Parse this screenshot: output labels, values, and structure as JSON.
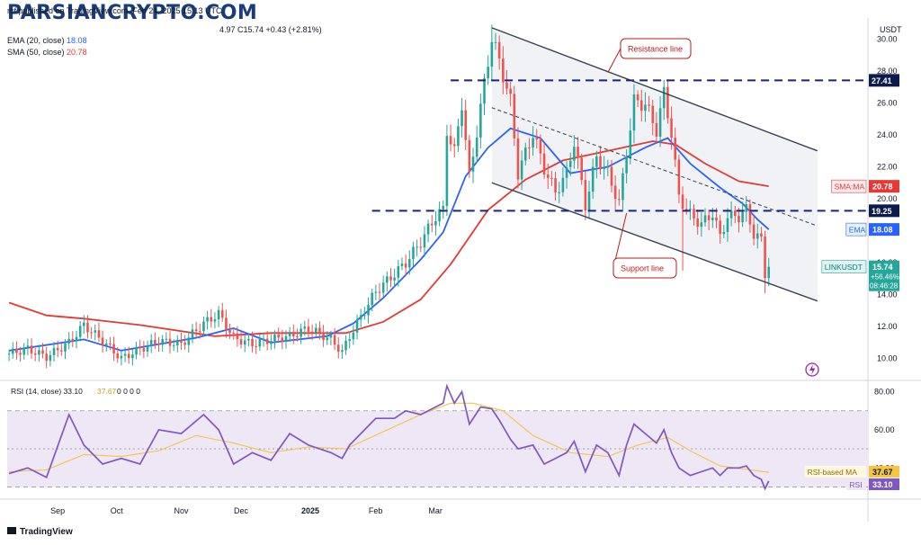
{
  "header": {
    "publisher_line": "rcf published on TradingView.com, Feb 24, 2025 15:13 UTC",
    "ohlc_fragment": "4.97  C15.74  +0.43 (+2.81%)",
    "ema_label": "EMA (20, close)",
    "ema_value": "18.08",
    "sma_label": "SMA (50, close)",
    "sma_value": "20.78"
  },
  "watermark": "PARSIANCRYPTO.COM",
  "footer": {
    "brand": "TradingView"
  },
  "colors": {
    "up": "#26a69a",
    "down": "#ef5350",
    "ema": "#2962ff",
    "sma": "#e53935",
    "channel": "#374151",
    "level": "#1a237e",
    "rsi": "#7e57c2",
    "rsi_ma": "#f6c445",
    "rsi_band": "#ede7f6"
  },
  "chart_data": [
    {
      "type": "candlestick",
      "symbol": "LINKUSDT",
      "quote": "USDT",
      "x_labels": [
        "Sep",
        "Oct",
        "Nov",
        "Dec",
        "2025",
        "Feb",
        "Mar"
      ],
      "ylim": [
        8.8,
        31.2
      ],
      "y_ticks": [
        10.0,
        12.0,
        14.0,
        16.0,
        18.0,
        20.0,
        22.0,
        24.0,
        26.0,
        28.0,
        30.0
      ],
      "price_path": [
        [
          0,
          10.3
        ],
        [
          5,
          10.6
        ],
        [
          10,
          10.1
        ],
        [
          16,
          11.0
        ],
        [
          20,
          12.1
        ],
        [
          25,
          11.1
        ],
        [
          30,
          10.0
        ],
        [
          35,
          10.6
        ],
        [
          40,
          11.1
        ],
        [
          46,
          10.9
        ],
        [
          52,
          12.2
        ],
        [
          56,
          12.8
        ],
        [
          60,
          11.3
        ],
        [
          65,
          10.9
        ],
        [
          70,
          11.2
        ],
        [
          75,
          11.4
        ],
        [
          80,
          11.9
        ],
        [
          86,
          11.2
        ],
        [
          89,
          10.4
        ],
        [
          91,
          11.4
        ],
        [
          94,
          12.6
        ],
        [
          98,
          14.2
        ],
        [
          103,
          15.3
        ],
        [
          106,
          16.0
        ],
        [
          110,
          17.3
        ],
        [
          114,
          18.9
        ],
        [
          116,
          19.3
        ],
        [
          117,
          24.3
        ],
        [
          119,
          22.9
        ],
        [
          121,
          26.0
        ],
        [
          123,
          21.3
        ],
        [
          126,
          25.7
        ],
        [
          129,
          30.1
        ],
        [
          131,
          28.6
        ],
        [
          134,
          26.1
        ],
        [
          136,
          21.6
        ],
        [
          140,
          24.1
        ],
        [
          143,
          21.9
        ],
        [
          146,
          20.4
        ],
        [
          149,
          21.6
        ],
        [
          151,
          23.6
        ],
        [
          154,
          19.6
        ],
        [
          157,
          22.6
        ],
        [
          160,
          21.6
        ],
        [
          163,
          19.7
        ],
        [
          165,
          22.9
        ],
        [
          167,
          26.1
        ],
        [
          170,
          25.9
        ],
        [
          173,
          24.3
        ],
        [
          175,
          26.6
        ],
        [
          177,
          24.1
        ],
        [
          179,
          20.1
        ],
        [
          182,
          19.0
        ],
        [
          185,
          18.4
        ],
        [
          188,
          19.1
        ],
        [
          190,
          17.6
        ],
        [
          192,
          18.9
        ],
        [
          195,
          18.9
        ],
        [
          197,
          19.3
        ],
        [
          199,
          17.8
        ],
        [
          201,
          17.4
        ],
        [
          202,
          15.3
        ],
        [
          203,
          15.74
        ]
      ],
      "wicks": [
        {
          "at": 129,
          "high": 30.9
        },
        {
          "at": 180,
          "low": 15.5
        },
        {
          "at": 202,
          "low": 14.1
        }
      ],
      "ema_20": [
        [
          0,
          10.5
        ],
        [
          20,
          11.2
        ],
        [
          30,
          10.5
        ],
        [
          50,
          11.3
        ],
        [
          60,
          11.9
        ],
        [
          70,
          11.0
        ],
        [
          85,
          11.4
        ],
        [
          92,
          12.2
        ],
        [
          100,
          13.8
        ],
        [
          110,
          16.2
        ],
        [
          116,
          17.9
        ],
        [
          122,
          21.4
        ],
        [
          128,
          23.2
        ],
        [
          134,
          24.4
        ],
        [
          142,
          23.8
        ],
        [
          150,
          21.6
        ],
        [
          160,
          22.0
        ],
        [
          170,
          23.2
        ],
        [
          176,
          23.8
        ],
        [
          182,
          22.2
        ],
        [
          190,
          20.7
        ],
        [
          196,
          19.7
        ],
        [
          200,
          18.7
        ],
        [
          203,
          18.08
        ]
      ],
      "sma_50": [
        [
          0,
          13.5
        ],
        [
          10,
          12.7
        ],
        [
          20,
          12.5
        ],
        [
          35,
          12.1
        ],
        [
          55,
          11.4
        ],
        [
          70,
          11.6
        ],
        [
          90,
          11.6
        ],
        [
          100,
          12.3
        ],
        [
          110,
          13.7
        ],
        [
          118,
          15.9
        ],
        [
          128,
          19.3
        ],
        [
          138,
          21.2
        ],
        [
          148,
          22.4
        ],
        [
          160,
          23.0
        ],
        [
          172,
          23.6
        ],
        [
          178,
          23.4
        ],
        [
          186,
          22.2
        ],
        [
          195,
          21.1
        ],
        [
          203,
          20.78
        ]
      ],
      "resistance_line": {
        "label": "Resistance line",
        "from": [
          129,
          30.7
        ],
        "to": [
          216,
          23.0
        ]
      },
      "support_line": {
        "label": "Support line",
        "from": [
          129,
          21.0
        ],
        "to": [
          216,
          13.6
        ]
      },
      "channel_midline": {
        "from": [
          129,
          25.7
        ],
        "to": [
          216,
          18.3
        ]
      },
      "horizontal_levels": [
        {
          "label": "27.41",
          "value": 27.41
        },
        {
          "label": "19.25",
          "value": 19.25
        }
      ],
      "price_tags": [
        {
          "label": "SMA:MA",
          "value": "20.78",
          "at": 20.78
        },
        {
          "label": "EMA",
          "value": "18.08",
          "at": 18.08
        },
        {
          "label": "LINKUSDT",
          "value": "15.74",
          "change": "+56.46%",
          "countdown": "08:46:28",
          "at": 15.74
        }
      ]
    },
    {
      "type": "line",
      "title": "RSI (14, close)",
      "header_values": [
        "33.10",
        "37.67",
        "0",
        "0",
        "0",
        "0"
      ],
      "ylim": [
        25,
        85
      ],
      "y_ticks": [
        40.0,
        60.0,
        80.0
      ],
      "upper_band": 70,
      "lower_band": 30,
      "middle": 50,
      "series": [
        {
          "name": "RSI",
          "value": "33.10",
          "points": [
            [
              0,
              37
            ],
            [
              5,
              40
            ],
            [
              10,
              35
            ],
            [
              16,
              68
            ],
            [
              20,
              52
            ],
            [
              25,
              42
            ],
            [
              30,
              45
            ],
            [
              35,
              42
            ],
            [
              40,
              60
            ],
            [
              46,
              58
            ],
            [
              52,
              68
            ],
            [
              56,
              60
            ],
            [
              60,
              42
            ],
            [
              65,
              48
            ],
            [
              70,
              44
            ],
            [
              75,
              58
            ],
            [
              80,
              52
            ],
            [
              86,
              48
            ],
            [
              89,
              45
            ],
            [
              91,
              52
            ],
            [
              94,
              58
            ],
            [
              98,
              66
            ],
            [
              103,
              66
            ],
            [
              106,
              70
            ],
            [
              110,
              68
            ],
            [
              114,
              72
            ],
            [
              116,
              74
            ],
            [
              117,
              83
            ],
            [
              119,
              74
            ],
            [
              121,
              80
            ],
            [
              123,
              63
            ],
            [
              126,
              72
            ],
            [
              129,
              71
            ],
            [
              131,
              65
            ],
            [
              134,
              55
            ],
            [
              136,
              50
            ],
            [
              140,
              52
            ],
            [
              143,
              42
            ],
            [
              146,
              45
            ],
            [
              149,
              48
            ],
            [
              151,
              54
            ],
            [
              154,
              38
            ],
            [
              157,
              52
            ],
            [
              160,
              48
            ],
            [
              163,
              36
            ],
            [
              165,
              52
            ],
            [
              167,
              63
            ],
            [
              170,
              58
            ],
            [
              173,
              53
            ],
            [
              175,
              60
            ],
            [
              177,
              48
            ],
            [
              179,
              40
            ],
            [
              182,
              36
            ],
            [
              185,
              38
            ],
            [
              188,
              40
            ],
            [
              190,
              36
            ],
            [
              192,
              40
            ],
            [
              195,
              40
            ],
            [
              197,
              41
            ],
            [
              199,
              36
            ],
            [
              201,
              34
            ],
            [
              202,
              29
            ],
            [
              203,
              33.1
            ]
          ]
        },
        {
          "name": "RSI-based MA",
          "value": "37.67",
          "points": [
            [
              0,
              38
            ],
            [
              10,
              39
            ],
            [
              20,
              47
            ],
            [
              30,
              46
            ],
            [
              40,
              49
            ],
            [
              50,
              57
            ],
            [
              60,
              53
            ],
            [
              70,
              48
            ],
            [
              80,
              51
            ],
            [
              90,
              50
            ],
            [
              100,
              59
            ],
            [
              110,
              68
            ],
            [
              118,
              74
            ],
            [
              124,
              74
            ],
            [
              132,
              70
            ],
            [
              140,
              57
            ],
            [
              150,
              48
            ],
            [
              160,
              46
            ],
            [
              168,
              52
            ],
            [
              176,
              56
            ],
            [
              182,
              49
            ],
            [
              190,
              41
            ],
            [
              198,
              39
            ],
            [
              203,
              37.67
            ]
          ]
        }
      ]
    }
  ]
}
